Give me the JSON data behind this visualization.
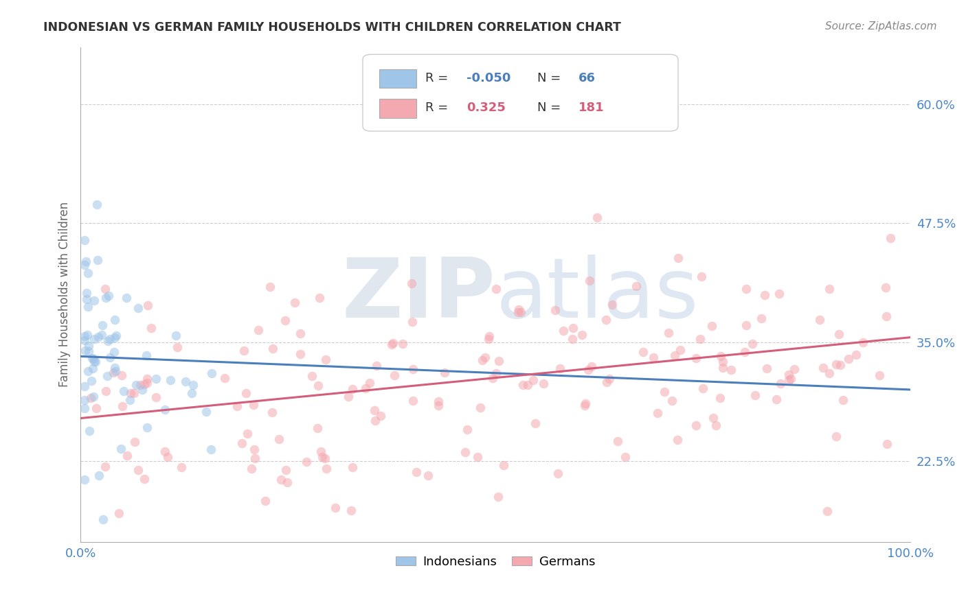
{
  "title": "INDONESIAN VS GERMAN FAMILY HOUSEHOLDS WITH CHILDREN CORRELATION CHART",
  "source": "Source: ZipAtlas.com",
  "ylabel": "Family Households with Children",
  "xlim": [
    0.0,
    100.0
  ],
  "ylim": [
    14.0,
    66.0
  ],
  "yticks": [
    22.5,
    35.0,
    47.5,
    60.0
  ],
  "indonesian_R": -0.05,
  "indonesian_N": 66,
  "german_R": 0.325,
  "german_N": 181,
  "blue_scatter_color": "#9fc5e8",
  "pink_scatter_color": "#f4a8b0",
  "blue_line_color": "#4a7fbb",
  "pink_line_color": "#d45d79",
  "legend_blue_patch": "#9fc5e8",
  "legend_pink_patch": "#f4a8b0",
  "legend_R_blue": "#4a7fbb",
  "legend_R_pink": "#d45d79",
  "legend_N_blue": "#4a7fbb",
  "legend_N_pink": "#d45d79",
  "axis_tick_color": "#4a86c8",
  "watermark_text": "ZIPatlas",
  "watermark_color_zip": "#c8d4e8",
  "watermark_color_atlas": "#c8d8f0",
  "title_color": "#333333",
  "ylabel_color": "#666666",
  "source_color": "#888888",
  "grid_color": "#cccccc",
  "spine_color": "#aaaaaa",
  "indo_trend_x": [
    0,
    100
  ],
  "indo_trend_y": [
    33.5,
    30.0
  ],
  "ger_trend_x": [
    0,
    100
  ],
  "ger_trend_y": [
    27.0,
    35.5
  ]
}
